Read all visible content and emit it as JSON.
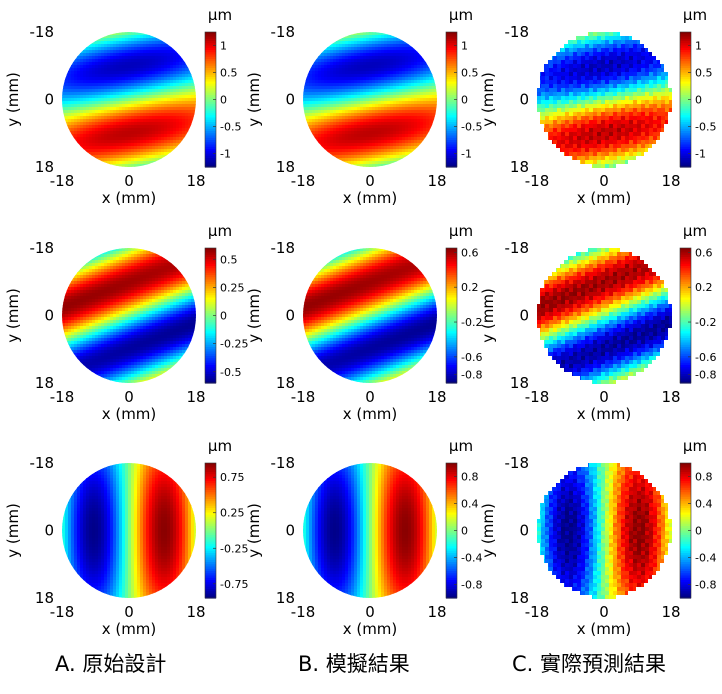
{
  "unit_label": "μm",
  "x_axis_label": "x (mm)",
  "y_axis_label": "y (mm)",
  "captions": [
    "A. 原始設計",
    "B. 模擬結果",
    "C. 實際預測結果"
  ],
  "chart_data": [
    {
      "type": "heatmap",
      "panel": "A-row1",
      "pattern": "row1",
      "measured": false,
      "x_ticks": [
        "-18",
        "0",
        "18"
      ],
      "y_ticks": [
        "-18",
        "0",
        "18"
      ],
      "xlim": [
        -18,
        18
      ],
      "ylim": [
        -18,
        18
      ],
      "colorbar": {
        "label": "μm",
        "min": -1.25,
        "max": 1.25,
        "ticks": [
          "1",
          "0.5",
          "0",
          "-0.5",
          "-1"
        ],
        "tick_values": [
          1,
          0.5,
          0,
          -0.5,
          -1
        ]
      }
    },
    {
      "type": "heatmap",
      "panel": "B-row1",
      "pattern": "row1",
      "measured": false,
      "x_ticks": [
        "-18",
        "0",
        "18"
      ],
      "y_ticks": [
        "-18",
        "0",
        "18"
      ],
      "xlim": [
        -18,
        18
      ],
      "ylim": [
        -18,
        18
      ],
      "colorbar": {
        "label": "μm",
        "min": -1.25,
        "max": 1.25,
        "ticks": [
          "1",
          "0.5",
          "0",
          "-0.5",
          "-1"
        ],
        "tick_values": [
          1,
          0.5,
          0,
          -0.5,
          -1
        ]
      }
    },
    {
      "type": "heatmap",
      "panel": "C-row1",
      "pattern": "row1",
      "measured": true,
      "x_ticks": [
        "-18",
        "0",
        "18"
      ],
      "y_ticks": [
        "-18",
        "0",
        "18"
      ],
      "xlim": [
        -18,
        18
      ],
      "ylim": [
        -18,
        18
      ],
      "colorbar": {
        "label": "μm",
        "min": -1.25,
        "max": 1.25,
        "ticks": [
          "1",
          "0.5",
          "0",
          "-0.5",
          "-1"
        ],
        "tick_values": [
          1,
          0.5,
          0,
          -0.5,
          -1
        ]
      }
    },
    {
      "type": "heatmap",
      "panel": "A-row2",
      "pattern": "row2",
      "measured": false,
      "x_ticks": [
        "-18",
        "0",
        "18"
      ],
      "y_ticks": [
        "-18",
        "0",
        "18"
      ],
      "xlim": [
        -18,
        18
      ],
      "ylim": [
        -18,
        18
      ],
      "colorbar": {
        "label": "μm",
        "min": -0.6,
        "max": 0.6,
        "ticks": [
          "0.5",
          "0.25",
          "0",
          "-0.25",
          "-0.5"
        ],
        "tick_values": [
          0.5,
          0.25,
          0,
          -0.25,
          -0.5
        ]
      }
    },
    {
      "type": "heatmap",
      "panel": "B-row2",
      "pattern": "row2",
      "measured": false,
      "x_ticks": [
        "-18",
        "0",
        "18"
      ],
      "y_ticks": [
        "-18",
        "0",
        "18"
      ],
      "xlim": [
        -18,
        18
      ],
      "ylim": [
        -18,
        18
      ],
      "colorbar": {
        "label": "μm",
        "min": -0.9,
        "max": 0.65,
        "ticks": [
          "0.6",
          "0.2",
          "-0.2",
          "-0.6",
          "-0.8"
        ],
        "tick_values": [
          0.6,
          0.2,
          -0.2,
          -0.6,
          -0.8
        ]
      }
    },
    {
      "type": "heatmap",
      "panel": "C-row2",
      "pattern": "row2",
      "measured": true,
      "x_ticks": [
        "-18",
        "0",
        "18"
      ],
      "y_ticks": [
        "-18",
        "0",
        "18"
      ],
      "xlim": [
        -18,
        18
      ],
      "ylim": [
        -18,
        18
      ],
      "colorbar": {
        "label": "μm",
        "min": -0.9,
        "max": 0.65,
        "ticks": [
          "0.6",
          "0.2",
          "-0.2",
          "-0.6",
          "-0.8"
        ],
        "tick_values": [
          0.6,
          0.2,
          -0.2,
          -0.6,
          -0.8
        ]
      }
    },
    {
      "type": "heatmap",
      "panel": "A-row3",
      "pattern": "row3",
      "measured": false,
      "x_ticks": [
        "-18",
        "0",
        "18"
      ],
      "y_ticks": [
        "-18",
        "0",
        "18"
      ],
      "xlim": [
        -18,
        18
      ],
      "ylim": [
        -18,
        18
      ],
      "colorbar": {
        "label": "μm",
        "min": -0.95,
        "max": 0.95,
        "ticks": [
          "0.75",
          "0.25",
          "-0.25",
          "-0.75"
        ],
        "tick_values": [
          0.75,
          0.25,
          -0.25,
          -0.75
        ]
      }
    },
    {
      "type": "heatmap",
      "panel": "B-row3",
      "pattern": "row3",
      "measured": false,
      "x_ticks": [
        "-18",
        "0",
        "18"
      ],
      "y_ticks": [
        "-18",
        "0",
        "18"
      ],
      "xlim": [
        -18,
        18
      ],
      "ylim": [
        -18,
        18
      ],
      "colorbar": {
        "label": "μm",
        "min": -1.0,
        "max": 1.0,
        "ticks": [
          "0.8",
          "0.4",
          "0",
          "-0.4",
          "-0.8"
        ],
        "tick_values": [
          0.8,
          0.4,
          0,
          -0.4,
          -0.8
        ]
      }
    },
    {
      "type": "heatmap",
      "panel": "C-row3",
      "pattern": "row3",
      "measured": true,
      "x_ticks": [
        "-18",
        "0",
        "18"
      ],
      "y_ticks": [
        "-18",
        "0",
        "18"
      ],
      "xlim": [
        -18,
        18
      ],
      "ylim": [
        -18,
        18
      ],
      "colorbar": {
        "label": "μm",
        "min": -1.0,
        "max": 1.0,
        "ticks": [
          "0.8",
          "0.4",
          "0",
          "-0.4",
          "-0.8"
        ],
        "tick_values": [
          0.8,
          0.4,
          0,
          -0.4,
          -0.8
        ]
      }
    }
  ]
}
